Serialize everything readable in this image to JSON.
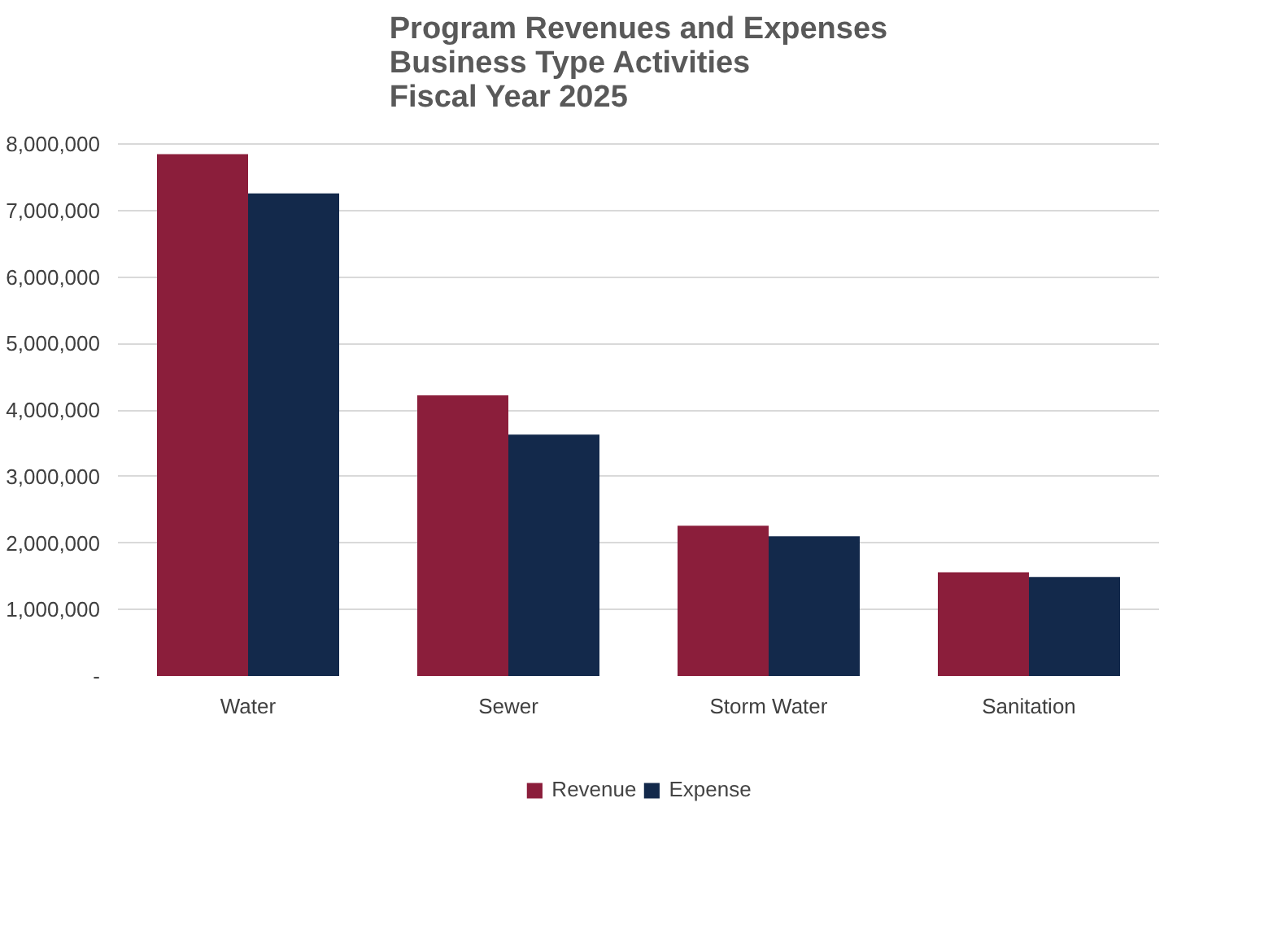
{
  "chart_data": {
    "type": "bar",
    "title": "Program Revenues and Expenses\nBusiness Type Activities\nFiscal Year 2025",
    "categories": [
      "Water",
      "Sewer",
      "Storm Water",
      "Sanitation"
    ],
    "series": [
      {
        "name": "Revenue",
        "color": "#8b1e3b",
        "values": [
          7850000,
          4220000,
          2260000,
          1560000
        ]
      },
      {
        "name": "Expense",
        "color": "#13294b",
        "values": [
          7260000,
          3630000,
          2100000,
          1490000
        ]
      }
    ],
    "ylim": [
      0,
      8000000
    ],
    "yticks": [
      {
        "value": 0,
        "label": "-"
      },
      {
        "value": 1000000,
        "label": "1,000,000"
      },
      {
        "value": 2000000,
        "label": "2,000,000"
      },
      {
        "value": 3000000,
        "label": "3,000,000"
      },
      {
        "value": 4000000,
        "label": "4,000,000"
      },
      {
        "value": 5000000,
        "label": "5,000,000"
      },
      {
        "value": 6000000,
        "label": "6,000,000"
      },
      {
        "value": 7000000,
        "label": "7,000,000"
      },
      {
        "value": 8000000,
        "label": "8,000,000"
      }
    ],
    "grid": "y",
    "legend": "bottom"
  }
}
